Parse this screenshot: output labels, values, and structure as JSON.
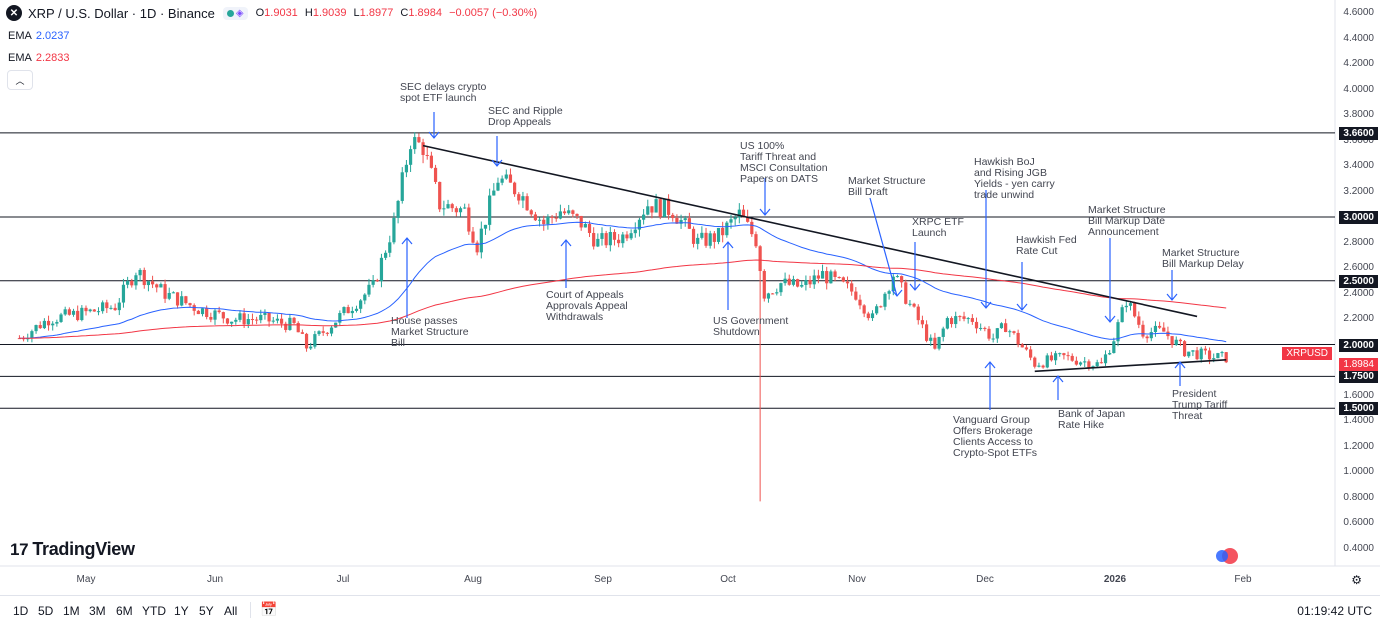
{
  "header": {
    "logo_glyph": "✕",
    "title": "XRP / U.S. Dollar · 1D · Binance",
    "ohlc": {
      "o_label": "O",
      "o": "1.9031",
      "h_label": "H",
      "h": "1.9039",
      "l_label": "L",
      "l": "1.8977",
      "c_label": "C",
      "c": "1.8984",
      "change": "−0.0057 (−0.30%)"
    }
  },
  "indicators": [
    {
      "name": "EMA",
      "value": "2.0237",
      "color": "#2962ff"
    },
    {
      "name": "EMA",
      "value": "2.2833",
      "color": "#f23645"
    }
  ],
  "colors": {
    "up": "#26a69a",
    "down": "#ef5350",
    "ema_short": "#2962ff",
    "ema_long": "#f23645",
    "hline": "#131722",
    "trend": "#131722",
    "arrow": "#2962ff",
    "symbol": "#f23645"
  },
  "annotations": [
    {
      "text": "SEC delays crypto\nspot ETF launch"
    },
    {
      "text": "SEC and Ripple\nDrop Appeals"
    },
    {
      "text": "US 100%\nTariff Threat and\nMSCI Consultation\nPapers on DATS"
    },
    {
      "text": "Market Structure\nBill Draft"
    },
    {
      "text": "Hawkish BoJ\nand Rising JGB\nYields - yen carry\ntrade unwind"
    },
    {
      "text": "XRPC ETF\nLaunch"
    },
    {
      "text": "Hawkish Fed\nRate Cut"
    },
    {
      "text": "Market Structure\nBill Markup Date\nAnnouncement"
    },
    {
      "text": "Market Structure\nBill Markup Delay"
    },
    {
      "text": "House passes\nMarket Structure\nBill"
    },
    {
      "text": "Court of Appeals\nApprovals Appeal\nWithdrawals"
    },
    {
      "text": "US Government\nShutdown"
    },
    {
      "text": "Vanguard Group\nOffers Brokerage\nClients Access to\nCrypto-Spot ETFs"
    },
    {
      "text": "Bank of Japan\nRate Hike"
    },
    {
      "text": "President\nTrump Tariff\nThreat"
    }
  ],
  "chart_data": {
    "type": "candlestick",
    "symbol": "XRPUSD",
    "current_price": "1.8984",
    "y_ticks": [
      "4.6000",
      "4.4000",
      "4.2000",
      "4.0000",
      "3.8000",
      "3.6000",
      "3.4000",
      "3.2000",
      "3.0000",
      "2.8000",
      "2.6000",
      "2.4000",
      "2.2000",
      "2.0000",
      "1.8000",
      "1.6000",
      "1.4000",
      "1.2000",
      "1.0000",
      "0.8000",
      "0.6000",
      "0.4000"
    ],
    "ylim": [
      0.3,
      4.7
    ],
    "horizontal_levels": [
      "3.6600",
      "3.0000",
      "2.5000",
      "2.0000",
      "1.7500",
      "1.5000"
    ],
    "x_labels": [
      "May",
      "Jun",
      "Jul",
      "Aug",
      "Sep",
      "Oct",
      "Nov",
      "Dec",
      "2026",
      "Feb"
    ],
    "trendlines": [
      {
        "from": [
          "2025-07-21",
          3.56
        ],
        "to": [
          "2026-01-23",
          2.22
        ]
      },
      {
        "from": [
          "2025-12-15",
          1.79
        ],
        "to": [
          "2026-01-30",
          1.88
        ]
      }
    ],
    "price_path": [
      [
        "2025-04-15",
        2.05
      ],
      [
        "2025-04-22",
        2.2
      ],
      [
        "2025-05-01",
        2.25
      ],
      [
        "2025-05-08",
        2.3
      ],
      [
        "2025-05-13",
        2.58
      ],
      [
        "2025-05-20",
        2.4
      ],
      [
        "2025-05-28",
        2.28
      ],
      [
        "2025-06-05",
        2.2
      ],
      [
        "2025-06-12",
        2.2
      ],
      [
        "2025-06-20",
        2.15
      ],
      [
        "2025-06-23",
        1.98
      ],
      [
        "2025-07-01",
        2.22
      ],
      [
        "2025-07-09",
        2.45
      ],
      [
        "2025-07-14",
        2.95
      ],
      [
        "2025-07-18",
        3.6
      ],
      [
        "2025-07-21",
        3.55
      ],
      [
        "2025-07-25",
        3.1
      ],
      [
        "2025-07-31",
        3.05
      ],
      [
        "2025-08-03",
        2.78
      ],
      [
        "2025-08-08",
        3.3
      ],
      [
        "2025-08-13",
        3.2
      ],
      [
        "2025-08-19",
        2.95
      ],
      [
        "2025-08-23",
        3.05
      ],
      [
        "2025-08-28",
        2.95
      ],
      [
        "2025-09-01",
        2.8
      ],
      [
        "2025-09-07",
        2.85
      ],
      [
        "2025-09-13",
        3.1
      ],
      [
        "2025-09-19",
        3.05
      ],
      [
        "2025-09-25",
        2.8
      ],
      [
        "2025-09-30",
        2.85
      ],
      [
        "2025-10-05",
        3.02
      ],
      [
        "2025-10-09",
        2.82
      ],
      [
        "2025-10-11",
        2.4
      ],
      [
        "2025-10-15",
        2.48
      ],
      [
        "2025-10-20",
        2.45
      ],
      [
        "2025-10-25",
        2.55
      ],
      [
        "2025-11-02",
        2.4
      ],
      [
        "2025-11-06",
        2.2
      ],
      [
        "2025-11-11",
        2.55
      ],
      [
        "2025-11-16",
        2.25
      ],
      [
        "2025-11-21",
        1.95
      ],
      [
        "2025-11-24",
        2.2
      ],
      [
        "2025-11-30",
        2.2
      ],
      [
        "2025-12-05",
        2.05
      ],
      [
        "2025-12-08",
        2.15
      ],
      [
        "2025-12-15",
        1.85
      ],
      [
        "2025-12-22",
        1.9
      ],
      [
        "2025-12-31",
        1.84
      ],
      [
        "2026-01-03",
        2.05
      ],
      [
        "2026-01-06",
        2.35
      ],
      [
        "2026-01-10",
        2.1
      ],
      [
        "2026-01-15",
        2.1
      ],
      [
        "2026-01-20",
        1.95
      ],
      [
        "2026-01-27",
        1.9
      ],
      [
        "2026-01-30",
        1.8984
      ]
    ],
    "crash_wick": {
      "date": "2025-10-10",
      "low": 0.77
    }
  },
  "watermark": {
    "text": "TradingView",
    "mark": "17"
  },
  "timeframes": [
    "1D",
    "5D",
    "1M",
    "3M",
    "6M",
    "YTD",
    "1Y",
    "5Y",
    "All"
  ],
  "clock": "01:19:42 UTC",
  "icons": {
    "gear": "gear-icon",
    "calendar": "calendar-icon",
    "collapse": "chevron-up-icon"
  }
}
